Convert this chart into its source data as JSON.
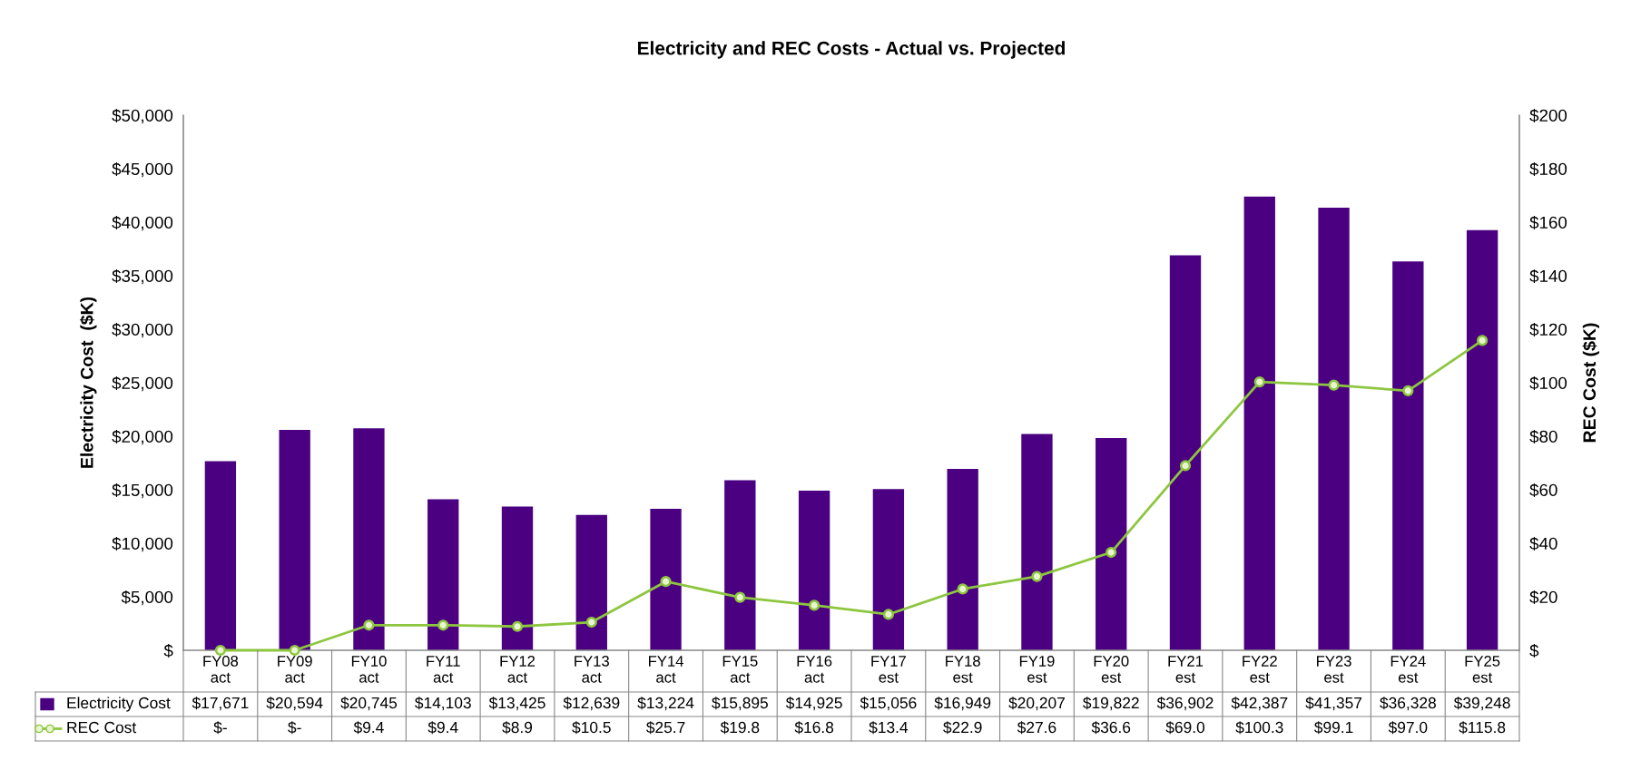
{
  "chart_data": {
    "type": "bar",
    "title": "Electricity and REC Costs - Actual vs. Projected",
    "ylabel": "Electricity Cost  ($K)",
    "y2label": "REC Cost ($K)",
    "categories": [
      "FY08\nact",
      "FY09\nact",
      "FY10\nact",
      "FY11\nact",
      "FY12\nact",
      "FY13\nact",
      "FY14\nact",
      "FY15\nact",
      "FY16\nact",
      "FY17\nest",
      "FY18\nest",
      "FY19\nest",
      "FY20\nest",
      "FY21\nest",
      "FY22\nest",
      "FY23\nest",
      "FY24\nest",
      "FY25\nest"
    ],
    "series": [
      {
        "name": "Electricity Cost",
        "color": "#4b0082",
        "values": [
          17671,
          20594,
          20745,
          14103,
          13425,
          12639,
          13224,
          15895,
          14925,
          15056,
          16949,
          20207,
          19822,
          36902,
          42387,
          41357,
          36328,
          39248
        ],
        "value_labels": [
          "$17,671",
          "$20,594",
          "$20,745",
          "$14,103",
          "$13,425",
          "$12,639",
          "$13,224",
          "$15,895",
          "$14,925",
          "$15,056",
          "$16,949",
          "$20,207",
          "$19,822",
          "$36,902",
          "$42,387",
          "$41,357",
          "$36,328",
          "$39,248"
        ]
      },
      {
        "name": "REC Cost",
        "type": "line",
        "axis": "y2",
        "color": "#8dc63f",
        "marker": "circle",
        "values": [
          0,
          0,
          9.4,
          9.4,
          8.9,
          10.5,
          25.7,
          19.8,
          16.8,
          13.4,
          22.9,
          27.6,
          36.6,
          69.0,
          100.3,
          99.1,
          97.0,
          115.8
        ],
        "value_labels": [
          "$-",
          "$-",
          "$9.4",
          "$9.4",
          "$8.9",
          "$10.5",
          "$25.7",
          "$19.8",
          "$16.8",
          "$13.4",
          "$22.9",
          "$27.6",
          "$36.6",
          "$69.0",
          "$100.3",
          "$99.1",
          "$97.0",
          "$115.8"
        ]
      }
    ],
    "ylim": [
      0,
      50000
    ],
    "yticks": [
      {
        "value": 0,
        "label": "$"
      },
      {
        "value": 5000,
        "label": "$5,000"
      },
      {
        "value": 10000,
        "label": "$10,000"
      },
      {
        "value": 15000,
        "label": "$15,000"
      },
      {
        "value": 20000,
        "label": "$20,000"
      },
      {
        "value": 25000,
        "label": "$25,000"
      },
      {
        "value": 30000,
        "label": "$30,000"
      },
      {
        "value": 35000,
        "label": "$35,000"
      },
      {
        "value": 40000,
        "label": "$40,000"
      },
      {
        "value": 45000,
        "label": "$45,000"
      },
      {
        "value": 50000,
        "label": "$50,000"
      }
    ],
    "y2lim": [
      0,
      200
    ],
    "y2ticks": [
      {
        "value": 0,
        "label": "$"
      },
      {
        "value": 20,
        "label": "$20"
      },
      {
        "value": 40,
        "label": "$40"
      },
      {
        "value": 60,
        "label": "$60"
      },
      {
        "value": 80,
        "label": "$80"
      },
      {
        "value": 100,
        "label": "$100"
      },
      {
        "value": 120,
        "label": "$120"
      },
      {
        "value": 140,
        "label": "$140"
      },
      {
        "value": 160,
        "label": "$160"
      },
      {
        "value": 180,
        "label": "$180"
      },
      {
        "value": 200,
        "label": "$200"
      }
    ],
    "legend": "bottom",
    "grid": false
  }
}
